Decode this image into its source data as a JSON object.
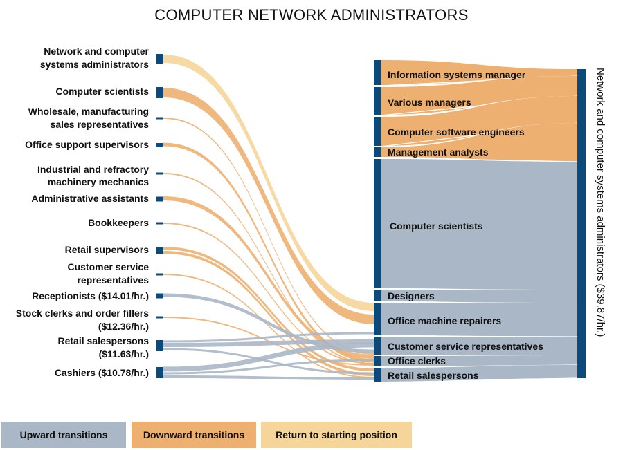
{
  "title": "COMPUTER NETWORK ADMINISTRATORS",
  "colors": {
    "node": "#0d4a7a",
    "upward": "#aab7c6",
    "downward": "#edb070",
    "return": "#f6d59a"
  },
  "left_nodes": [
    {
      "label_lines": [
        "Network and computer",
        "systems administrators"
      ]
    },
    {
      "label_lines": [
        "Computer scientists"
      ]
    },
    {
      "label_lines": [
        "Wholesale, manufacturing",
        "sales representatives"
      ]
    },
    {
      "label_lines": [
        "Office support supervisors"
      ]
    },
    {
      "label_lines": [
        "Industrial and refractory",
        "machinery mechanics"
      ]
    },
    {
      "label_lines": [
        "Administrative assistants"
      ]
    },
    {
      "label_lines": [
        "Bookkeepers"
      ]
    },
    {
      "label_lines": [
        "Retail supervisors"
      ]
    },
    {
      "label_lines": [
        "Customer service",
        "representatives"
      ]
    },
    {
      "label_lines": [
        "Receptionists ($14.01/hr.)"
      ]
    },
    {
      "label_lines": [
        "Stock clerks and order fillers",
        "($12.36/hr.)"
      ]
    },
    {
      "label_lines": [
        "Retail salespersons",
        "($11.63/hr.)"
      ]
    },
    {
      "label_lines": [
        "Cashiers ($10.78/hr.)"
      ]
    }
  ],
  "middle_nodes": [
    {
      "label": "Information systems manager",
      "transition": "downward"
    },
    {
      "label": "Various managers",
      "transition": "downward"
    },
    {
      "label": "Computer software engineers",
      "transition": "downward"
    },
    {
      "label": "Management analysts",
      "transition": "downward"
    },
    {
      "label": "Computer scientists",
      "transition": "upward"
    },
    {
      "label": "Designers",
      "transition": "upward"
    },
    {
      "label": "Office machine repairers",
      "transition": "upward"
    },
    {
      "label": "Customer service representatives",
      "transition": "upward"
    },
    {
      "label": "Office clerks",
      "transition": "upward"
    },
    {
      "label": "Retail salespersons",
      "transition": "upward"
    }
  ],
  "right_node": {
    "label": "Network and computer systems administrators ($39.87/hr.)"
  },
  "legend": [
    {
      "label": "Upward transitions",
      "key": "upward"
    },
    {
      "label": "Downward transitions",
      "key": "downward"
    },
    {
      "label": "Return to starting position",
      "key": "return"
    }
  ]
}
